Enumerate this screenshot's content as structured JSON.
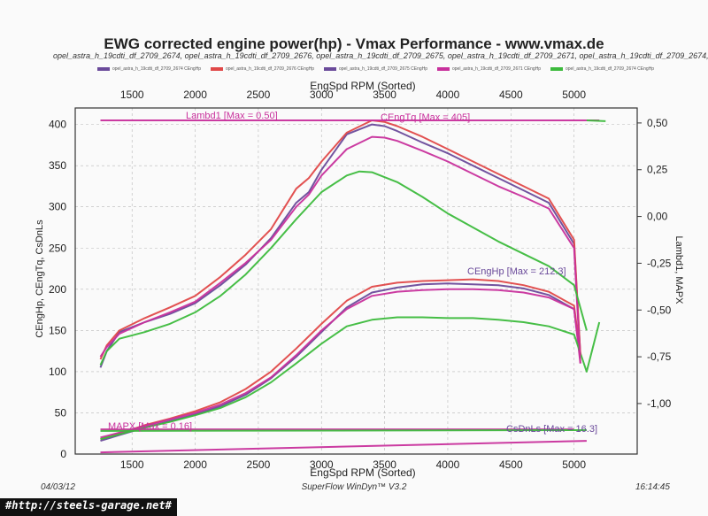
{
  "header": {
    "title": "EWG corrected engine power(hp) - Vmax Performance - www.vmax.de",
    "runs_line": "opel_astra_h_19cdti_df_2709_2674, opel_astra_h_19cdti_df_2709_2676, opel_astra_h_19cdti_df_2709_2675, opel_astra_h_19cdti_df_2709_2671, opel_astra_h_19cdti_df_2709_2674,"
  },
  "footer": {
    "date": "04/03/12",
    "software": "SuperFlow WinDyn™ V3.2",
    "time": "16:14:45",
    "watermark": "#http://steels-garage.net#"
  },
  "colors": {
    "purple": "#6a4a9a",
    "red": "#e04848",
    "magenta": "#c8309c",
    "green": "#3cba3c",
    "frame": "#333333",
    "grid": "#b8b8b8"
  },
  "chart_data": {
    "type": "line",
    "xlabel": "EngSpd RPM     (Sorted)",
    "xlabel_top": "EngSpd RPM     (Sorted)",
    "ylabel": "CEngHp, CEngTq, CsDnLs",
    "ylabel_right": "Lambd1, MAPX",
    "xlim": [
      1050,
      5500
    ],
    "ylim": [
      0,
      420
    ],
    "ylim_right": [
      -1.27,
      0.58
    ],
    "x_ticks": [
      1500,
      2000,
      2500,
      3000,
      3500,
      4000,
      4500,
      5000
    ],
    "y_ticks": [
      0,
      50,
      100,
      150,
      200,
      250,
      300,
      350,
      400
    ],
    "y_ticks_right": [
      -1.0,
      -0.75,
      -0.5,
      -0.25,
      0.0,
      0.25,
      0.5
    ],
    "y_ticks_right_labels": [
      "-1,00",
      "-0,75",
      "-0,50",
      "-0,25",
      "0,00",
      "0,25",
      "0,50"
    ],
    "grid": true,
    "annotations": {
      "lambda": "Lambd1 [Max = 0.50]",
      "torque": "CEngTq [Max = 405]",
      "power": "CEngHp [Max = 212.3]",
      "mapx": "MAPX  [Max = 0.16]",
      "loss": "CsDnLs [Max = 16.3]"
    },
    "legend_tiles": [
      {
        "color": "#6a4a9a",
        "label": "opel_astra_h_19cdti_df_2709_2674 CEngHp"
      },
      {
        "color": "#e04848",
        "label": "opel_astra_h_19cdti_df_2709_2676 CEngHp"
      },
      {
        "color": "#6a4a9a",
        "label": "opel_astra_h_19cdti_df_2709_2675 CEngHp"
      },
      {
        "color": "#c8309c",
        "label": "opel_astra_h_19cdti_df_2709_2671 CEngHp"
      },
      {
        "color": "#3cba3c",
        "label": "opel_astra_h_19cdti_df_2709_2674 CEngHp"
      }
    ],
    "series": [
      {
        "color": "#6a4a9a",
        "x": [
          1250,
          1400,
          1600,
          1800,
          2000,
          2200,
          2400,
          2600,
          2800,
          3000,
          3200,
          3400,
          3600,
          3800,
          4000,
          4200,
          4400,
          4600,
          4800,
          5000,
          5050
        ],
        "values": [
          16,
          23,
          32,
          40,
          48,
          58,
          72,
          92,
          118,
          148,
          178,
          196,
          202,
          206,
          207,
          206,
          205,
          201,
          193,
          176,
          120
        ]
      },
      {
        "color": "#e04848",
        "x": [
          1250,
          1400,
          1600,
          1800,
          2000,
          2200,
          2400,
          2600,
          2800,
          3000,
          3200,
          3400,
          3600,
          3800,
          4000,
          4200,
          4400,
          4600,
          4800,
          5000,
          5050
        ],
        "values": [
          18,
          25,
          35,
          43,
          52,
          63,
          79,
          100,
          128,
          158,
          186,
          203,
          208,
          210,
          211,
          212,
          210,
          205,
          197,
          180,
          120
        ]
      },
      {
        "color": "#c8309c",
        "x": [
          1250,
          1400,
          1600,
          1800,
          2000,
          2200,
          2400,
          2600,
          2800,
          3000,
          3200,
          3400,
          3600,
          3800,
          4000,
          4200,
          4400,
          4600,
          4800,
          5000,
          5050
        ],
        "values": [
          20,
          26,
          34,
          42,
          50,
          60,
          74,
          93,
          120,
          150,
          176,
          192,
          197,
          199,
          200,
          200,
          199,
          196,
          190,
          176,
          110
        ]
      },
      {
        "color": "#3cba3c",
        "x": [
          1250,
          1400,
          1600,
          1800,
          2000,
          2200,
          2400,
          2600,
          2800,
          3000,
          3200,
          3400,
          3600,
          3800,
          4000,
          4200,
          4400,
          4600,
          4800,
          5000,
          5100,
          5200
        ],
        "values": [
          18,
          24,
          32,
          39,
          47,
          56,
          69,
          87,
          110,
          134,
          155,
          163,
          166,
          166,
          165,
          165,
          163,
          160,
          155,
          145,
          100,
          160
        ]
      },
      {
        "color": "#6a4a9a",
        "x": [
          1250,
          1300,
          1400,
          1600,
          1800,
          2000,
          2200,
          2400,
          2600,
          2800,
          2900,
          3000,
          3200,
          3400,
          3500,
          3600,
          3800,
          4000,
          4200,
          4400,
          4600,
          4800,
          5000,
          5050
        ],
        "values": [
          105,
          125,
          148,
          160,
          170,
          183,
          205,
          230,
          262,
          305,
          318,
          345,
          388,
          400,
          398,
          392,
          378,
          365,
          350,
          335,
          320,
          305,
          255,
          120
        ]
      },
      {
        "color": "#e04848",
        "x": [
          1250,
          1300,
          1400,
          1600,
          1800,
          2000,
          2200,
          2400,
          2600,
          2800,
          2900,
          3000,
          3200,
          3400,
          3500,
          3600,
          3800,
          4000,
          4200,
          4400,
          4600,
          4800,
          5000,
          5050
        ],
        "values": [
          115,
          132,
          150,
          165,
          178,
          192,
          215,
          242,
          273,
          322,
          335,
          355,
          390,
          405,
          403,
          398,
          385,
          370,
          355,
          340,
          325,
          310,
          260,
          120
        ]
      },
      {
        "color": "#c8309c",
        "x": [
          1250,
          1300,
          1400,
          1600,
          1800,
          2000,
          2200,
          2400,
          2600,
          2800,
          2900,
          3000,
          3200,
          3400,
          3500,
          3600,
          3800,
          4000,
          4200,
          4400,
          4600,
          4800,
          5000,
          5050
        ],
        "values": [
          118,
          130,
          146,
          160,
          172,
          185,
          208,
          232,
          260,
          300,
          315,
          338,
          370,
          385,
          384,
          380,
          368,
          355,
          340,
          325,
          312,
          298,
          250,
          110
        ]
      },
      {
        "color": "#3cba3c",
        "x": [
          1250,
          1300,
          1400,
          1600,
          1800,
          2000,
          2200,
          2400,
          2600,
          2800,
          3000,
          3200,
          3300,
          3400,
          3600,
          3800,
          4000,
          4200,
          4400,
          4600,
          4800,
          5000,
          5100
        ],
        "values": [
          108,
          125,
          140,
          148,
          158,
          172,
          192,
          218,
          250,
          285,
          318,
          338,
          343,
          342,
          330,
          312,
          292,
          275,
          258,
          243,
          228,
          205,
          150
        ]
      },
      {
        "color": "#c8309c",
        "x": [
          1250,
          5200
        ],
        "values": [
          405,
          405
        ]
      },
      {
        "color": "#3cba3c",
        "x": [
          5100,
          5250
        ],
        "values": [
          405,
          404
        ]
      },
      {
        "color": "#c8309c",
        "x": [
          1250,
          5100
        ],
        "values": [
          2,
          16
        ]
      },
      {
        "color": "#c8309c",
        "x": [
          1250,
          5000
        ],
        "values": [
          30,
          30
        ]
      },
      {
        "color": "#3cba3c",
        "x": [
          1250,
          5100
        ],
        "values": [
          28,
          29
        ]
      }
    ]
  }
}
